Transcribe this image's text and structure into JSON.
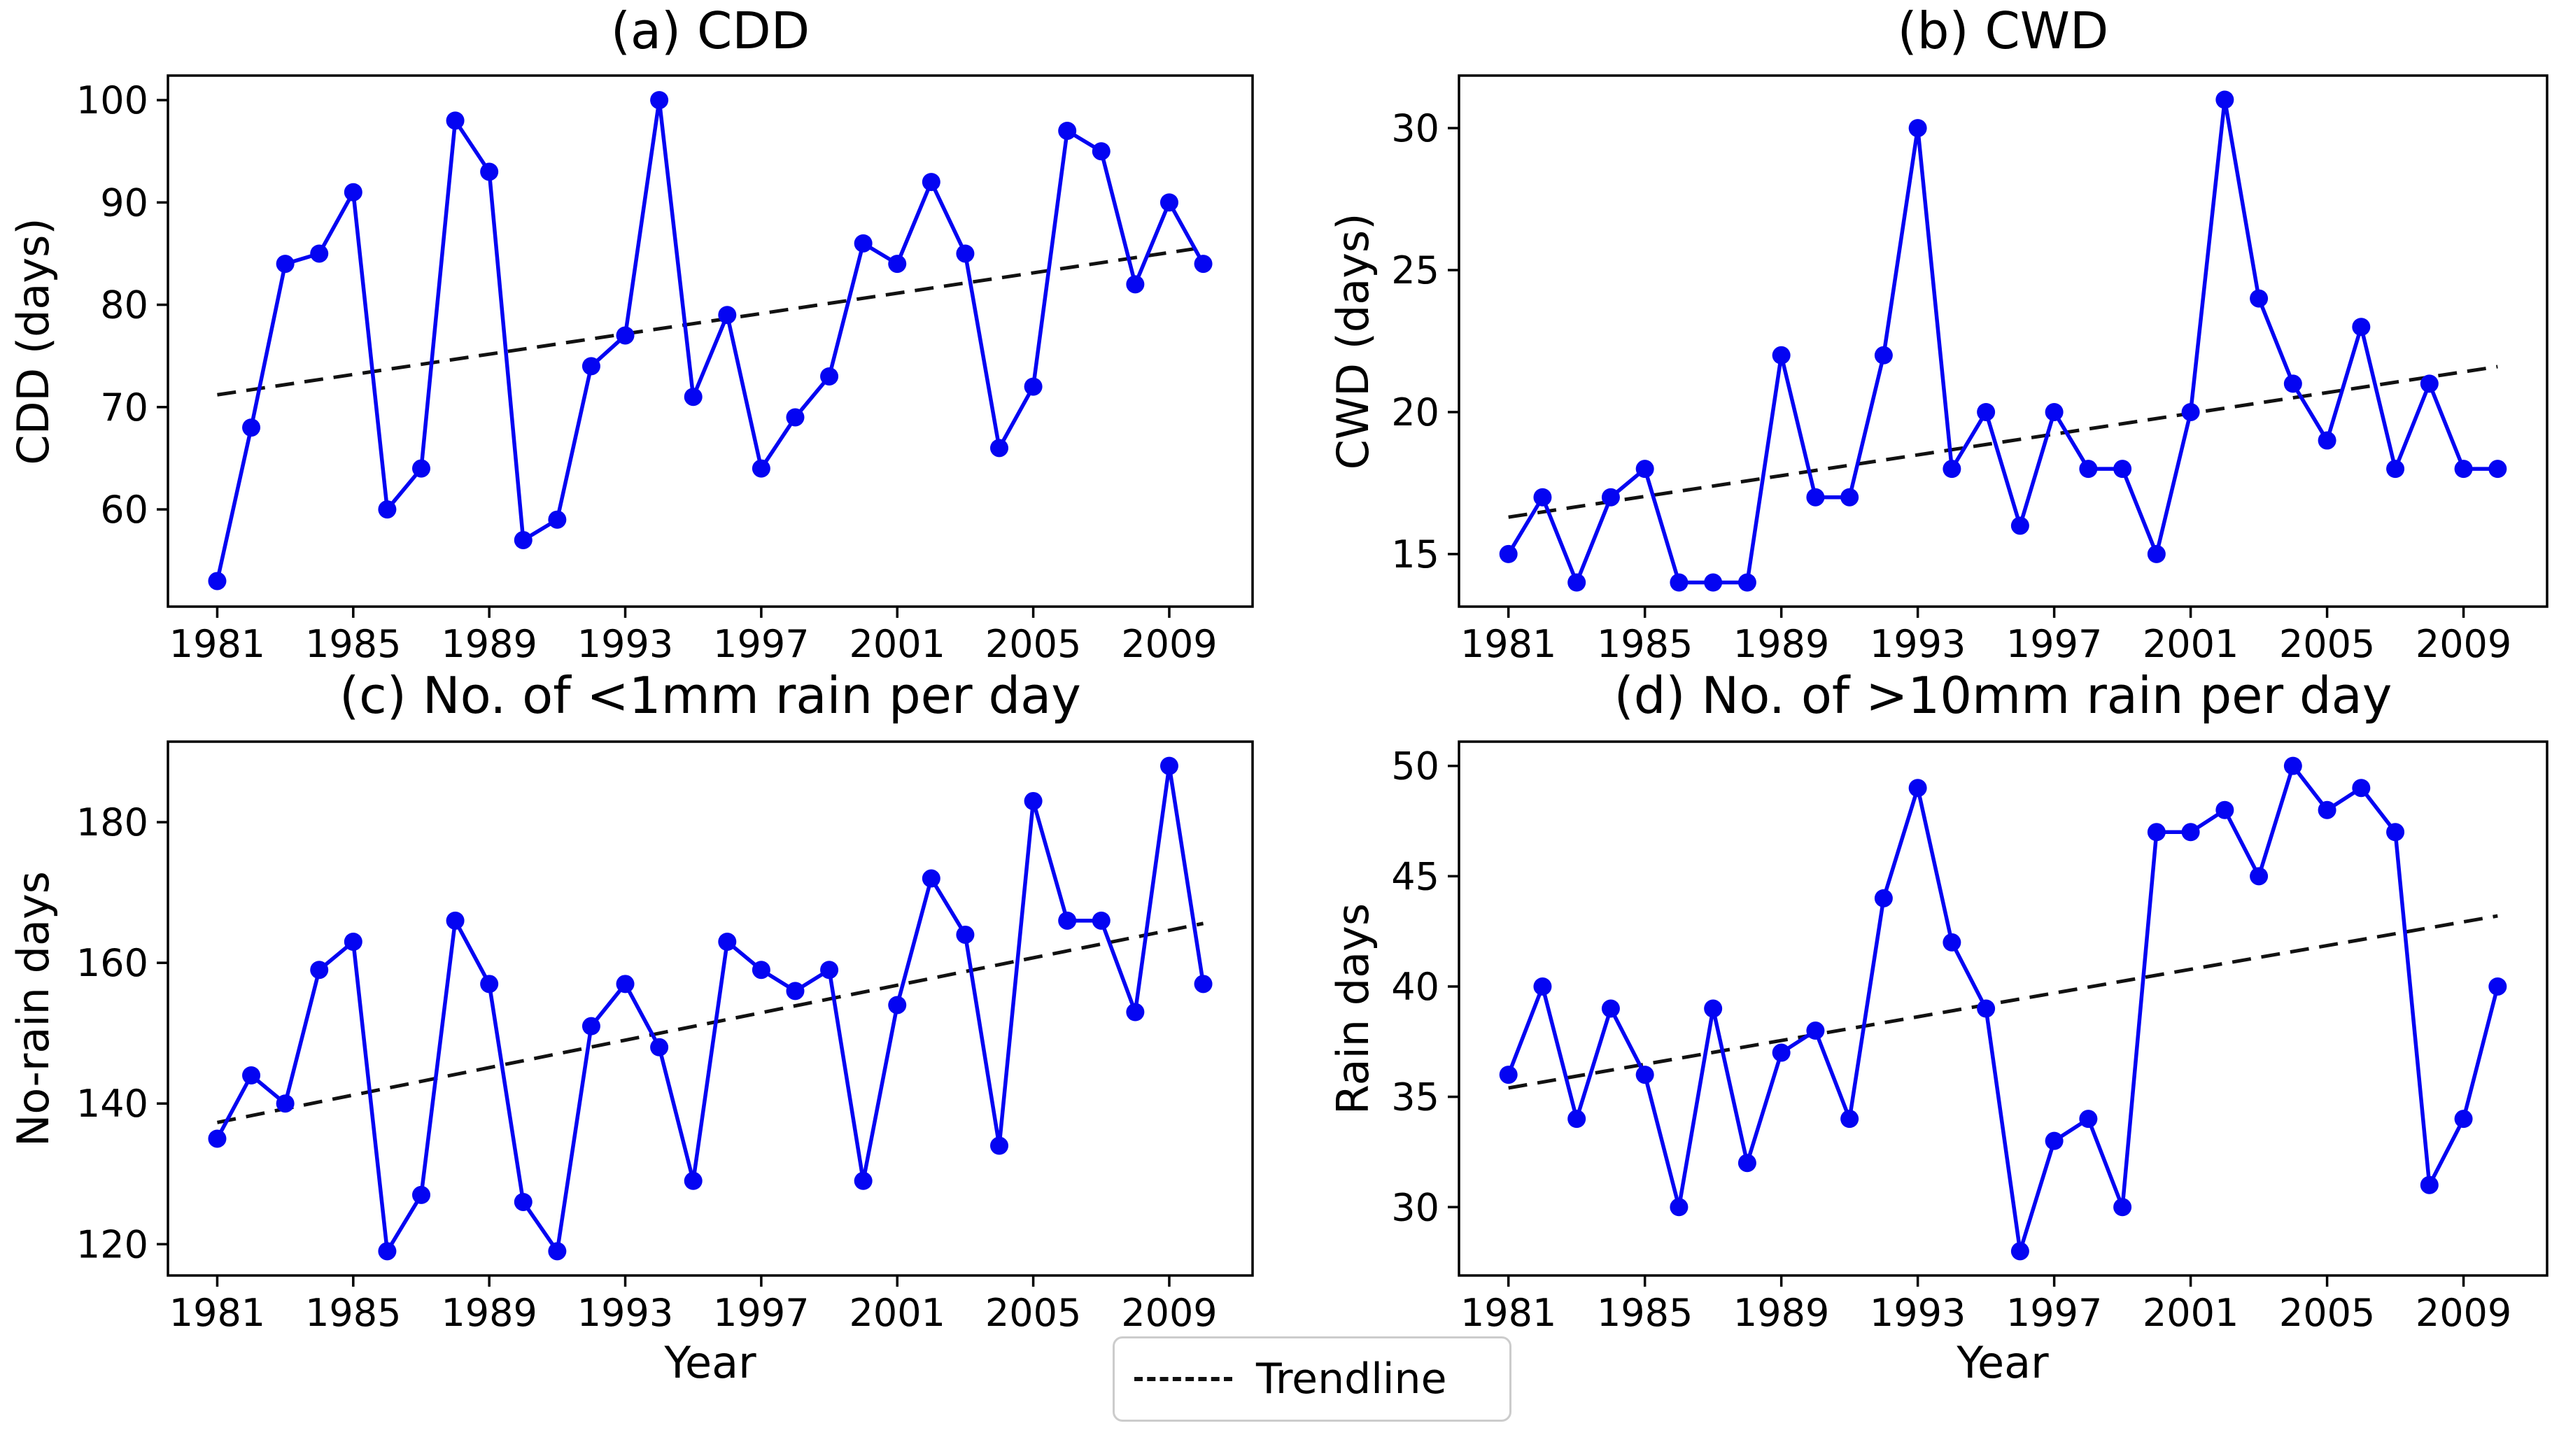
{
  "colors": {
    "series_blue": "#0404f2",
    "trendline_black": "#111111",
    "axis_black": "#000000",
    "legend_border_gray": "#cccccc",
    "background": "#ffffff"
  },
  "legend": {
    "label": "Trendline",
    "style": "dashed",
    "position": "bottom-center"
  },
  "chart_data": [
    {
      "id": "a",
      "type": "line",
      "title": "(a) CDD",
      "ylabel": "CDD (days)",
      "xlabel": "",
      "x": [
        1981,
        1982,
        1983,
        1984,
        1985,
        1986,
        1987,
        1988,
        1989,
        1990,
        1991,
        1992,
        1993,
        1994,
        1995,
        1996,
        1997,
        1998,
        1999,
        2000,
        2001,
        2002,
        2003,
        2004,
        2005,
        2006,
        2007,
        2008,
        2009,
        2010
      ],
      "series": [
        {
          "name": "CDD",
          "values": [
            53,
            68,
            84,
            85,
            91,
            60,
            64,
            98,
            93,
            57,
            59,
            74,
            77,
            100,
            71,
            79,
            64,
            69,
            73,
            86,
            84,
            92,
            85,
            66,
            72,
            97,
            95,
            82,
            90,
            84
          ]
        }
      ],
      "trendline": {
        "x": [
          1981,
          2010
        ],
        "y": [
          71.2,
          85.6
        ]
      },
      "xlim": [
        1979.55,
        2011.45
      ],
      "ylim": [
        50.5,
        102.4
      ],
      "xticks": [
        1981,
        1985,
        1989,
        1993,
        1997,
        2001,
        2005,
        2009
      ],
      "yticks": [
        60,
        70,
        80,
        90,
        100
      ],
      "grid": false
    },
    {
      "id": "b",
      "type": "line",
      "title": "(b) CWD",
      "ylabel": "CWD (days)",
      "xlabel": "",
      "x": [
        1981,
        1982,
        1983,
        1984,
        1985,
        1986,
        1987,
        1988,
        1989,
        1990,
        1991,
        1992,
        1993,
        1994,
        1995,
        1996,
        1997,
        1998,
        1999,
        2000,
        2001,
        2002,
        2003,
        2004,
        2005,
        2006,
        2007,
        2008,
        2009,
        2010
      ],
      "series": [
        {
          "name": "CWD",
          "values": [
            15,
            17,
            14,
            17,
            18,
            14,
            14,
            14,
            22,
            17,
            17,
            22,
            30,
            18,
            20,
            16,
            20,
            18,
            18,
            15,
            20,
            31,
            24,
            21,
            19,
            23,
            18,
            21,
            18,
            18
          ]
        }
      ],
      "trendline": {
        "x": [
          1981,
          2010
        ],
        "y": [
          16.3,
          21.6
        ]
      },
      "xlim": [
        1979.55,
        2011.45
      ],
      "ylim": [
        13.15,
        31.85
      ],
      "xticks": [
        1981,
        1985,
        1989,
        1993,
        1997,
        2001,
        2005,
        2009
      ],
      "yticks": [
        15,
        20,
        25,
        30
      ],
      "grid": false
    },
    {
      "id": "c",
      "type": "line",
      "title": "(c) No. of <1mm rain per day",
      "ylabel": "No-rain days",
      "xlabel": "Year",
      "x": [
        1981,
        1982,
        1983,
        1984,
        1985,
        1986,
        1987,
        1988,
        1989,
        1990,
        1991,
        1992,
        1993,
        1994,
        1995,
        1996,
        1997,
        1998,
        1999,
        2000,
        2001,
        2002,
        2003,
        2004,
        2005,
        2006,
        2007,
        2008,
        2009,
        2010
      ],
      "series": [
        {
          "name": "No-rain days",
          "values": [
            135,
            144,
            140,
            159,
            163,
            119,
            127,
            166,
            157,
            126,
            119,
            151,
            157,
            148,
            129,
            163,
            159,
            156,
            159,
            129,
            154,
            172,
            164,
            134,
            183,
            166,
            166,
            153,
            188,
            157
          ]
        }
      ],
      "trendline": {
        "x": [
          1981,
          2010
        ],
        "y": [
          137.3,
          165.6
        ]
      },
      "xlim": [
        1979.55,
        2011.45
      ],
      "ylim": [
        115.55,
        191.45
      ],
      "xticks": [
        1981,
        1985,
        1989,
        1993,
        1997,
        2001,
        2005,
        2009
      ],
      "yticks": [
        120,
        140,
        160,
        180
      ],
      "grid": false
    },
    {
      "id": "d",
      "type": "line",
      "title": "(d) No. of >10mm rain per day",
      "ylabel": "Rain days",
      "xlabel": "Year",
      "x": [
        1981,
        1982,
        1983,
        1984,
        1985,
        1986,
        1987,
        1988,
        1989,
        1990,
        1991,
        1992,
        1993,
        1994,
        1995,
        1996,
        1997,
        1998,
        1999,
        2000,
        2001,
        2002,
        2003,
        2004,
        2005,
        2006,
        2007,
        2008,
        2009,
        2010
      ],
      "series": [
        {
          "name": "Rain days",
          "values": [
            36,
            40,
            34,
            39,
            36,
            30,
            39,
            32,
            37,
            38,
            34,
            44,
            49,
            42,
            39,
            28,
            33,
            34,
            30,
            47,
            47,
            48,
            45,
            50,
            48,
            49,
            47,
            31,
            34,
            40
          ]
        }
      ],
      "trendline": {
        "x": [
          1981,
          2010
        ],
        "y": [
          35.4,
          43.2
        ]
      },
      "xlim": [
        1979.55,
        2011.45
      ],
      "ylim": [
        26.9,
        51.1
      ],
      "xticks": [
        1981,
        1985,
        1989,
        1993,
        1997,
        2001,
        2005,
        2009
      ],
      "yticks": [
        30,
        35,
        40,
        45,
        50
      ],
      "grid": false
    }
  ]
}
